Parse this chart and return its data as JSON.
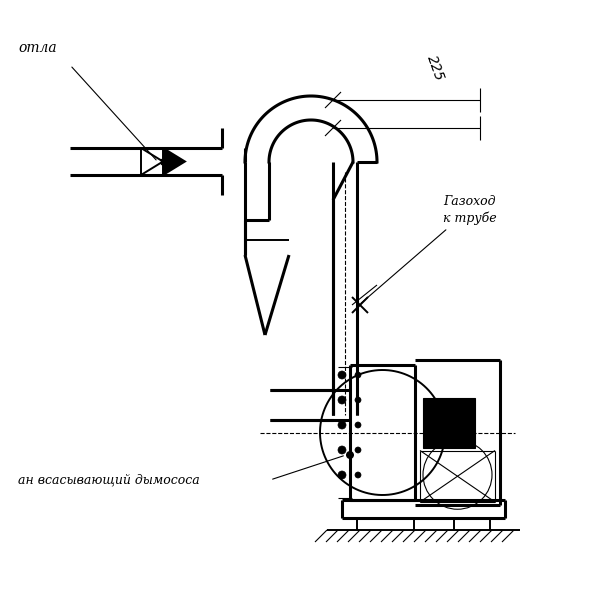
{
  "bg_color": "#ffffff",
  "line_color": "#000000",
  "label_kotla": "отла",
  "label_gazohod": "Газоход\nк трубе",
  "label_vsan": "ан всасывающий дымососа",
  "dim_225": "225",
  "lw_thick": 2.2,
  "lw_medium": 1.4,
  "lw_thin": 0.8
}
